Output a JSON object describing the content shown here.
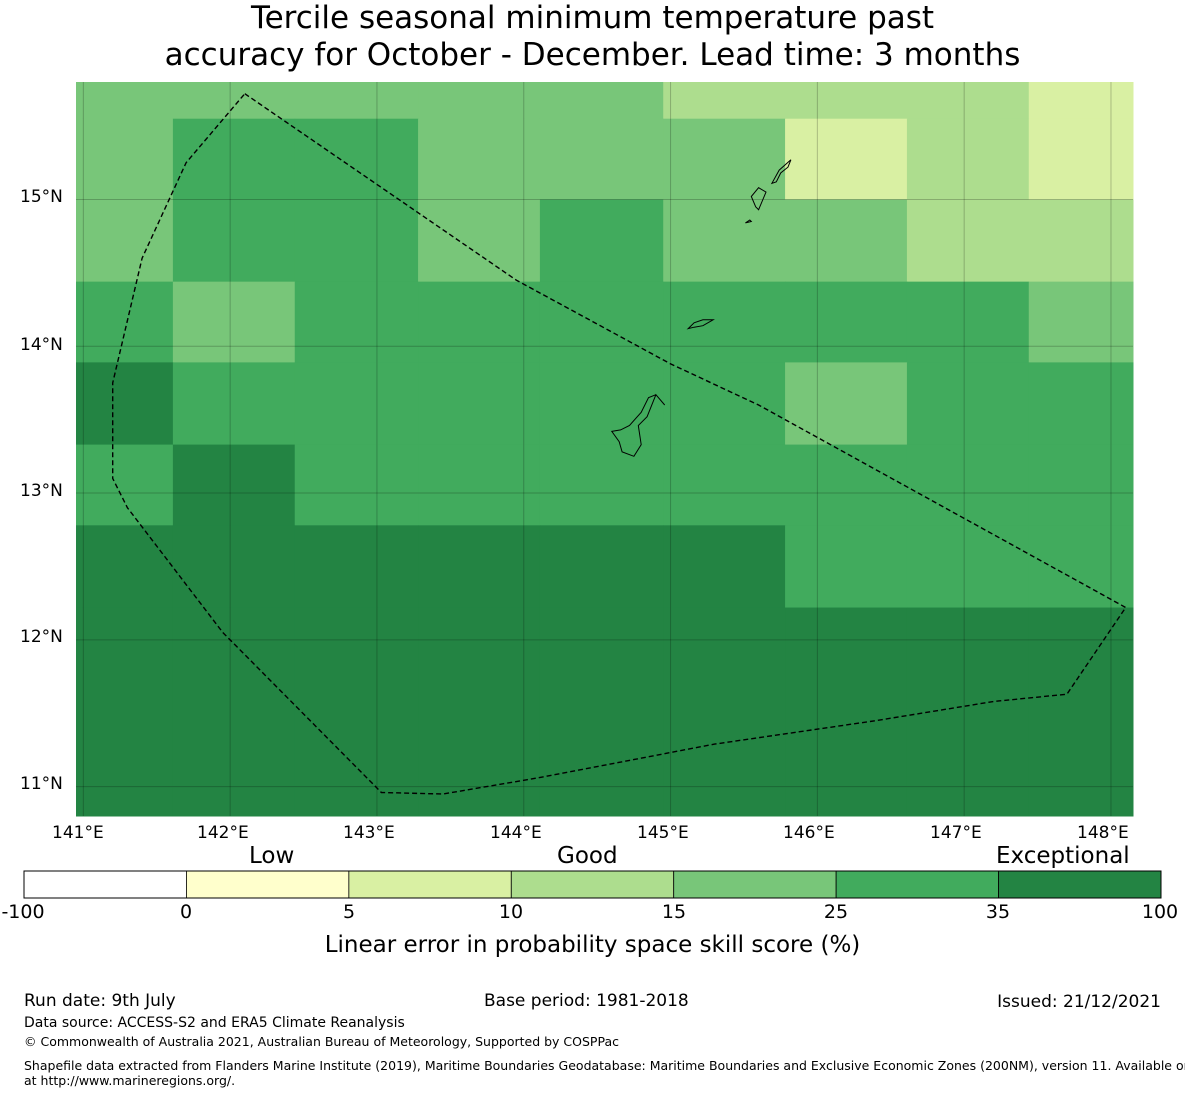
{
  "title": {
    "line1": "Tercile seasonal minimum temperature past",
    "line2": "accuracy for October - December. Lead time: 3 months"
  },
  "axes": {
    "x_labels": [
      "141°E",
      "142°E",
      "143°E",
      "144°E",
      "145°E",
      "146°E",
      "147°E",
      "148°E"
    ],
    "y_labels": [
      "15°N",
      "14°N",
      "13°N",
      "12°N",
      "11°N"
    ]
  },
  "chart_data": {
    "type": "heatmap",
    "x": [
      141.0,
      142.0,
      143.0,
      144.0,
      145.0,
      146.0,
      147.0,
      148.0
    ],
    "y": [
      15.0,
      14.0,
      13.0,
      12.0,
      11.0
    ],
    "lon_range": [
      140.95,
      148.15
    ],
    "lat_range": [
      10.8,
      15.8
    ],
    "grid_lon_edges": [
      140.95,
      141.61,
      142.44,
      143.28,
      144.11,
      144.95,
      145.78,
      146.61,
      147.44,
      148.15
    ],
    "grid_lat_edges": [
      15.8,
      15.55,
      15.0,
      14.44,
      13.89,
      13.33,
      12.78,
      12.22,
      10.8
    ],
    "category_grid": [
      [
        4,
        4,
        4,
        4,
        4,
        3,
        3,
        3,
        2
      ],
      [
        4,
        5,
        5,
        4,
        4,
        4,
        2,
        3,
        2
      ],
      [
        4,
        5,
        5,
        4,
        5,
        4,
        4,
        3,
        3
      ],
      [
        5,
        4,
        5,
        5,
        5,
        5,
        5,
        5,
        4
      ],
      [
        6,
        5,
        5,
        5,
        5,
        5,
        4,
        5,
        5
      ],
      [
        5,
        6,
        5,
        5,
        5,
        5,
        5,
        5,
        5
      ],
      [
        6,
        6,
        6,
        6,
        6,
        6,
        5,
        5,
        5
      ],
      [
        6,
        6,
        6,
        6,
        6,
        6,
        6,
        6,
        6
      ]
    ],
    "colorbar": {
      "categories": [
        "Low",
        "Good",
        "Exceptional"
      ],
      "bounds": [
        -100,
        0,
        5,
        10,
        15,
        25,
        35,
        100
      ],
      "colors": [
        "#ffffff",
        "#ffffcc",
        "#d9f0a3",
        "#addd8e",
        "#78c679",
        "#41ab5d",
        "#238443"
      ],
      "label": "Linear error in probability space skill score (%)"
    },
    "boundary_lonlat": [
      [
        142.1,
        15.72
      ],
      [
        143.95,
        14.45
      ],
      [
        145.0,
        13.88
      ],
      [
        145.6,
        13.6
      ],
      [
        148.1,
        12.22
      ],
      [
        147.7,
        11.63
      ],
      [
        147.2,
        11.58
      ],
      [
        146.4,
        11.45
      ],
      [
        145.3,
        11.29
      ],
      [
        144.1,
        11.06
      ],
      [
        143.45,
        10.95
      ],
      [
        143.03,
        10.96
      ],
      [
        141.95,
        12.05
      ],
      [
        141.3,
        12.9
      ],
      [
        141.2,
        13.1
      ],
      [
        141.2,
        13.75
      ],
      [
        141.4,
        14.6
      ],
      [
        141.7,
        15.25
      ],
      [
        142.1,
        15.72
      ]
    ],
    "islands_lonlat": [
      [
        [
          144.96,
          13.6
        ],
        [
          144.9,
          13.67
        ],
        [
          144.84,
          13.52
        ],
        [
          144.78,
          13.46
        ],
        [
          144.8,
          13.33
        ],
        [
          144.75,
          13.25
        ],
        [
          144.67,
          13.28
        ],
        [
          144.65,
          13.35
        ],
        [
          144.6,
          13.42
        ],
        [
          144.66,
          13.43
        ],
        [
          144.72,
          13.46
        ],
        [
          144.8,
          13.55
        ],
        [
          144.85,
          13.65
        ],
        [
          144.9,
          13.67
        ]
      ],
      [
        [
          145.29,
          14.18
        ],
        [
          145.22,
          14.14
        ],
        [
          145.16,
          14.13
        ],
        [
          145.12,
          14.12
        ],
        [
          145.16,
          14.16
        ],
        [
          145.22,
          14.18
        ]
      ],
      [
        [
          145.82,
          15.27
        ],
        [
          145.74,
          15.2
        ],
        [
          145.69,
          15.11
        ],
        [
          145.72,
          15.12
        ],
        [
          145.75,
          15.18
        ],
        [
          145.8,
          15.22
        ]
      ],
      [
        [
          145.65,
          15.05
        ],
        [
          145.6,
          14.93
        ],
        [
          145.58,
          14.95
        ],
        [
          145.55,
          15.02
        ],
        [
          145.6,
          15.08
        ]
      ],
      [
        [
          145.55,
          14.85
        ],
        [
          145.51,
          14.84
        ],
        [
          145.54,
          14.86
        ]
      ]
    ]
  },
  "colorbar_ticks": [
    "-100",
    "0",
    "5",
    "10",
    "15",
    "25",
    "35",
    "100"
  ],
  "footer": {
    "run_date": "Run date: 9th July",
    "base_period": "Base period: 1981-2018",
    "issued": "Issued: 21/12/2021",
    "data_source": "Data source: ACCESS-S2 and ERA5 Climate Reanalysis",
    "copyright": "© Commonwealth of Australia 2021, Australian Bureau of Meteorology, Supported by COSPPac",
    "shapefile_line1": "Shapefile data extracted from Flanders Marine Institute (2019), Maritime Boundaries Geodatabase: Maritime Boundaries and Exclusive Economic Zones (200NM), version 11. Available online",
    "shapefile_line2": "at http://www.marineregions.org/."
  }
}
